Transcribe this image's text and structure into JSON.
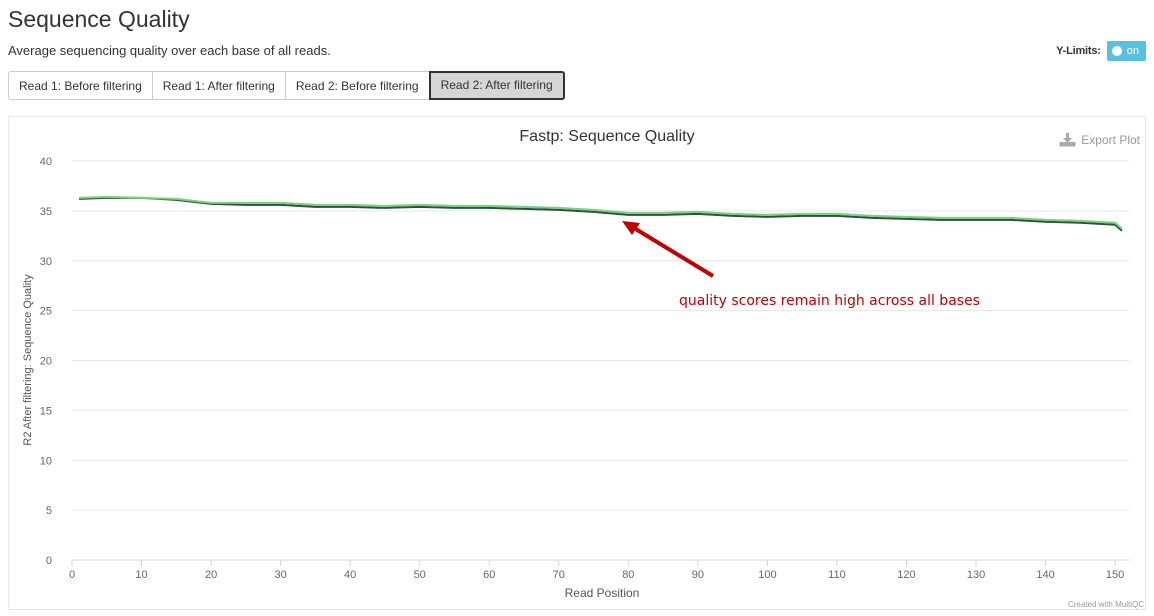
{
  "header": {
    "title": "Sequence Quality",
    "subtitle": "Average sequencing quality over each base of all reads."
  },
  "ylimits": {
    "label": "Y-Limits:",
    "toggle_label": "on"
  },
  "tabs": [
    {
      "label": "Read 1: Before filtering",
      "active": false
    },
    {
      "label": "Read 1: After filtering",
      "active": false
    },
    {
      "label": "Read 2: Before filtering",
      "active": false
    },
    {
      "label": "Read 2: After filtering",
      "active": true
    }
  ],
  "export_label": "Export Plot",
  "credit": "Created with MultiQC",
  "annotation": {
    "text": "quality scores remain high across all bases",
    "color": "#c00000"
  },
  "chart_data": {
    "type": "line",
    "title": "Fastp: Sequence Quality",
    "xlabel": "Read Position",
    "ylabel": "R2 After filtering: Sequence Quality",
    "xlim": [
      0,
      152
    ],
    "ylim": [
      0,
      40
    ],
    "x_ticks": [
      0,
      10,
      20,
      30,
      40,
      50,
      60,
      70,
      80,
      90,
      100,
      110,
      120,
      130,
      140,
      150
    ],
    "y_ticks": [
      0,
      5,
      10,
      15,
      20,
      25,
      30,
      35,
      40
    ],
    "grid": true,
    "series": [
      {
        "color": "#2f4f3f",
        "x": [
          1,
          5,
          10,
          15,
          20,
          25,
          30,
          35,
          40,
          45,
          50,
          55,
          60,
          65,
          70,
          75,
          80,
          85,
          90,
          95,
          100,
          105,
          110,
          115,
          120,
          125,
          130,
          135,
          140,
          145,
          150,
          151
        ],
        "y": [
          36.2,
          36.3,
          36.3,
          36.1,
          35.7,
          35.6,
          35.6,
          35.4,
          35.4,
          35.3,
          35.4,
          35.3,
          35.3,
          35.2,
          35.1,
          34.9,
          34.6,
          34.6,
          34.7,
          34.5,
          34.4,
          34.5,
          34.5,
          34.3,
          34.2,
          34.1,
          34.1,
          34.1,
          33.9,
          33.8,
          33.6,
          33.0
        ]
      },
      {
        "color": "#7bd07b",
        "x": [
          1,
          5,
          10,
          15,
          20,
          25,
          30,
          35,
          40,
          45,
          50,
          55,
          60,
          65,
          70,
          75,
          80,
          85,
          90,
          95,
          100,
          105,
          110,
          115,
          120,
          125,
          130,
          135,
          140,
          145,
          150,
          151
        ],
        "y": [
          36.3,
          36.4,
          36.3,
          36.2,
          35.8,
          35.8,
          35.8,
          35.6,
          35.6,
          35.5,
          35.6,
          35.5,
          35.5,
          35.4,
          35.3,
          35.1,
          34.8,
          34.8,
          34.9,
          34.7,
          34.6,
          34.7,
          34.7,
          34.5,
          34.4,
          34.3,
          34.3,
          34.3,
          34.1,
          34.0,
          33.8,
          33.2
        ]
      }
    ]
  }
}
